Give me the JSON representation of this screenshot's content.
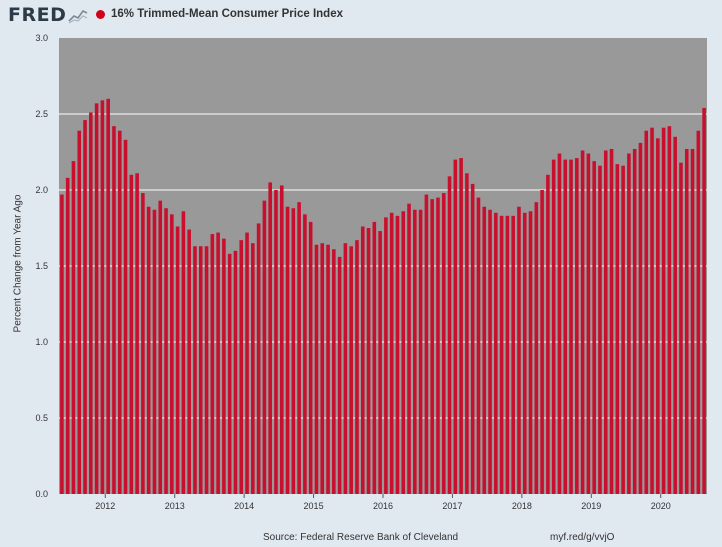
{
  "brand": {
    "logo_text": "FRED",
    "logo_icon": "fred-line-chart-icon"
  },
  "chart_data": {
    "type": "bar",
    "title": "16% Trimmed-Mean Consumer Price Index",
    "ylabel": "Percent Change from Year Ago",
    "xlabel": "",
    "ylim": [
      0,
      3.0
    ],
    "yticks": [
      "0.0",
      "0.5",
      "1.0",
      "1.5",
      "2.0",
      "2.5",
      "3.0"
    ],
    "xlim": [
      "2011-05",
      "2020-08"
    ],
    "xticks": [
      {
        "label": "2012",
        "date": "2012-01"
      },
      {
        "label": "2013",
        "date": "2013-01"
      },
      {
        "label": "2014",
        "date": "2014-01"
      },
      {
        "label": "2015",
        "date": "2015-01"
      },
      {
        "label": "2016",
        "date": "2016-01"
      },
      {
        "label": "2017",
        "date": "2017-01"
      },
      {
        "label": "2018",
        "date": "2018-01"
      },
      {
        "label": "2019",
        "date": "2019-01"
      },
      {
        "label": "2020",
        "date": "2020-01"
      }
    ],
    "grid": true,
    "bar_color": "#c8102e",
    "plot_background": "#999999",
    "x": [
      "2011-05",
      "2011-06",
      "2011-07",
      "2011-08",
      "2011-09",
      "2011-10",
      "2011-11",
      "2011-12",
      "2012-01",
      "2012-02",
      "2012-03",
      "2012-04",
      "2012-05",
      "2012-06",
      "2012-07",
      "2012-08",
      "2012-09",
      "2012-10",
      "2012-11",
      "2012-12",
      "2013-01",
      "2013-02",
      "2013-03",
      "2013-04",
      "2013-05",
      "2013-06",
      "2013-07",
      "2013-08",
      "2013-09",
      "2013-10",
      "2013-11",
      "2013-12",
      "2014-01",
      "2014-02",
      "2014-03",
      "2014-04",
      "2014-05",
      "2014-06",
      "2014-07",
      "2014-08",
      "2014-09",
      "2014-10",
      "2014-11",
      "2014-12",
      "2015-01",
      "2015-02",
      "2015-03",
      "2015-04",
      "2015-05",
      "2015-06",
      "2015-07",
      "2015-08",
      "2015-09",
      "2015-10",
      "2015-11",
      "2015-12",
      "2016-01",
      "2016-02",
      "2016-03",
      "2016-04",
      "2016-05",
      "2016-06",
      "2016-07",
      "2016-08",
      "2016-09",
      "2016-10",
      "2016-11",
      "2016-12",
      "2017-01",
      "2017-02",
      "2017-03",
      "2017-04",
      "2017-05",
      "2017-06",
      "2017-07",
      "2017-08",
      "2017-09",
      "2017-10",
      "2017-11",
      "2017-12",
      "2018-01",
      "2018-02",
      "2018-03",
      "2018-04",
      "2018-05",
      "2018-06",
      "2018-07",
      "2018-08",
      "2018-09",
      "2018-10",
      "2018-11",
      "2018-12",
      "2019-01",
      "2019-02",
      "2019-03",
      "2019-04",
      "2019-05",
      "2019-06",
      "2019-07",
      "2019-08",
      "2019-09",
      "2019-10",
      "2019-11",
      "2019-12",
      "2020-01",
      "2020-02",
      "2020-03",
      "2020-04",
      "2020-05",
      "2020-06",
      "2020-07",
      "2020-08"
    ],
    "values": [
      1.97,
      2.08,
      2.19,
      2.39,
      2.46,
      2.51,
      2.57,
      2.59,
      2.6,
      2.42,
      2.39,
      2.33,
      2.1,
      2.11,
      1.98,
      1.89,
      1.87,
      1.93,
      1.88,
      1.84,
      1.76,
      1.86,
      1.74,
      1.63,
      1.63,
      1.63,
      1.71,
      1.72,
      1.68,
      1.58,
      1.6,
      1.67,
      1.72,
      1.65,
      1.78,
      1.93,
      2.05,
      2.0,
      2.03,
      1.89,
      1.88,
      1.92,
      1.84,
      1.79,
      1.64,
      1.65,
      1.64,
      1.61,
      1.56,
      1.65,
      1.63,
      1.67,
      1.76,
      1.75,
      1.79,
      1.73,
      1.82,
      1.85,
      1.83,
      1.86,
      1.91,
      1.87,
      1.87,
      1.97,
      1.94,
      1.95,
      1.98,
      2.09,
      2.2,
      2.21,
      2.11,
      2.04,
      1.95,
      1.89,
      1.87,
      1.85,
      1.83,
      1.83,
      1.83,
      1.89,
      1.85,
      1.86,
      1.92,
      2.0,
      2.1,
      2.2,
      2.24,
      2.2,
      2.2,
      2.21,
      2.26,
      2.24,
      2.19,
      2.16,
      2.26,
      2.27,
      2.17,
      2.16,
      2.24,
      2.27,
      2.31,
      2.39,
      2.41,
      2.34,
      2.41,
      2.42,
      2.35,
      2.18,
      2.27,
      2.27,
      2.39,
      2.54
    ]
  },
  "footer": {
    "source": "Source: Federal Reserve Bank of Cleveland",
    "link": "myf.red/g/vvjO"
  }
}
